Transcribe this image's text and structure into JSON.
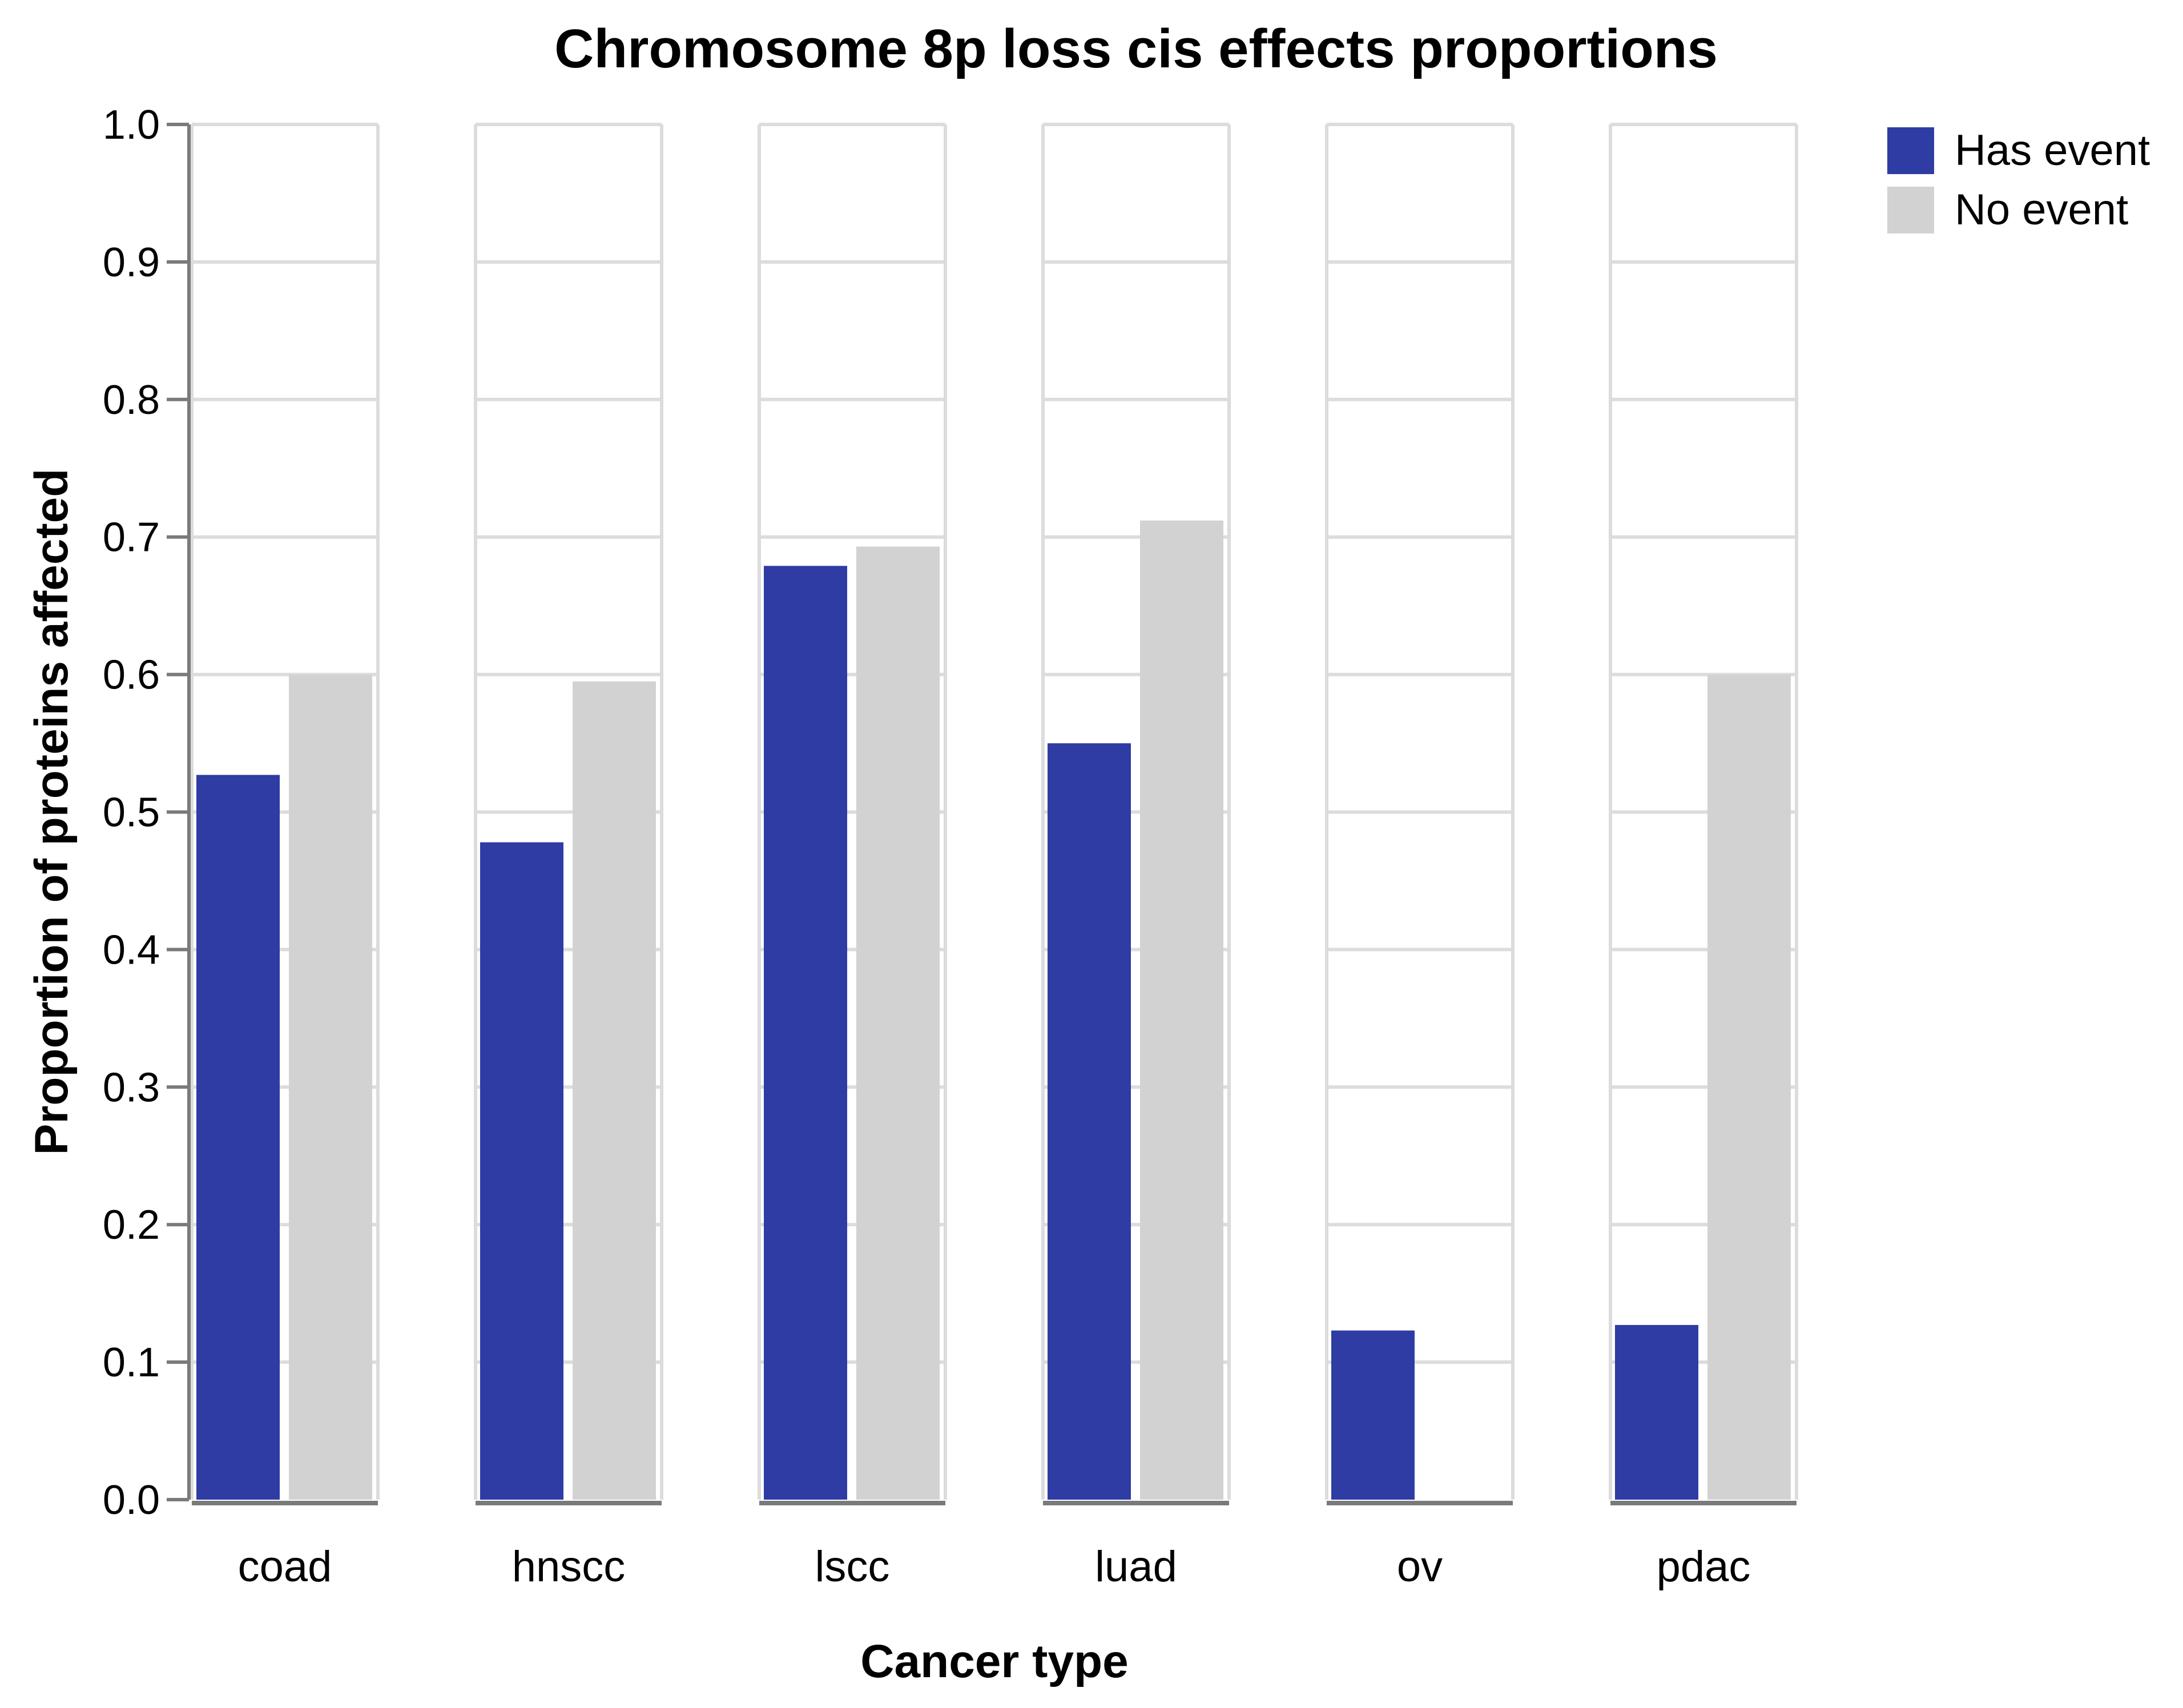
{
  "colors": {
    "has_event": "#2e3ca3",
    "no_event": "#d2d2d2",
    "grid": "#dcdcdc",
    "axis": "#7a7a7a"
  },
  "chart_data": {
    "type": "bar",
    "title": "Chromosome 8p loss cis effects proportions",
    "xlabel": "Cancer type",
    "ylabel": "Proportion of proteins affected",
    "categories": [
      "coad",
      "hnscc",
      "lscc",
      "luad",
      "ov",
      "pdac"
    ],
    "series": [
      {
        "name": "Has event",
        "values": [
          0.527,
          0.478,
          0.679,
          0.55,
          0.123,
          0.127
        ]
      },
      {
        "name": "No event",
        "values": [
          0.6,
          0.595,
          0.693,
          0.712,
          0.0,
          0.6
        ]
      }
    ],
    "ylim": [
      0,
      1.0
    ],
    "yticks": [
      "0.0",
      "0.1",
      "0.2",
      "0.3",
      "0.4",
      "0.5",
      "0.6",
      "0.7",
      "0.8",
      "0.9",
      "1.0"
    ],
    "grid": true,
    "legend_position": "top-right"
  }
}
